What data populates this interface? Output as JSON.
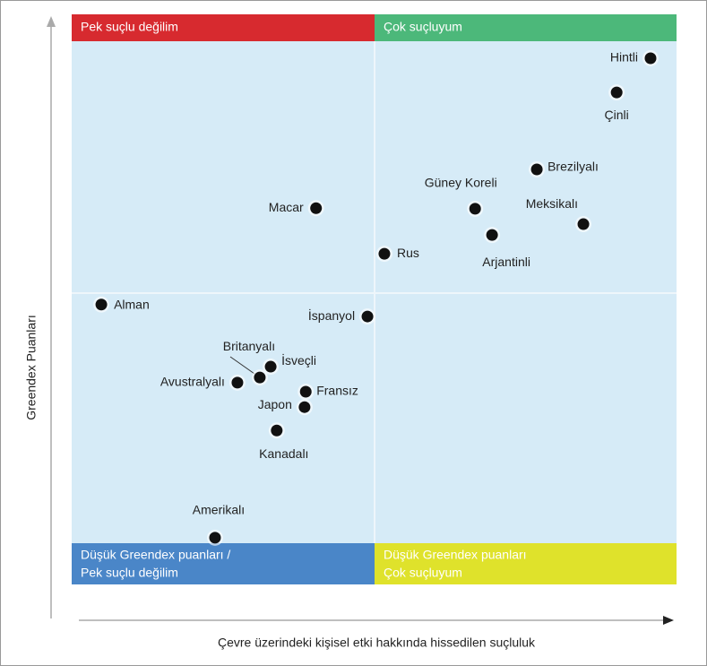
{
  "chart_data": {
    "type": "scatter",
    "x_label": "Çevre üzerindeki kişisel etki hakkında hissedilen suçluluk",
    "y_label": "Greendex Puanları",
    "quadrants": {
      "top_left": [
        "Pek suçlu değilim"
      ],
      "top_right": [
        "Çok suçluyum"
      ],
      "bottom_left": [
        "Düşük Greendex puanları /",
        "Pek suçlu değilim"
      ],
      "bottom_right": [
        "Düşük Greendex puanları",
        "Çok suçluyum"
      ]
    },
    "xlim": [
      0,
      100
    ],
    "ylim": [
      0,
      100
    ],
    "color": "#111111",
    "labels": [
      "Hintli",
      "Çinli",
      "Brezilyalı",
      "Güney Koreli",
      "Meksikalı",
      "Arjantinli",
      "Macar",
      "Rus",
      "Alman",
      "İspanyol",
      "İsveçli",
      "Britanyalı",
      "Avustralyalı",
      "Fransız",
      "Japon",
      "Kanadalı",
      "Amerikalı"
    ],
    "x": [
      95.7,
      90.1,
      76.9,
      66.7,
      84.6,
      69.5,
      40.4,
      51.7,
      4.9,
      48.9,
      32.9,
      31.1,
      27.4,
      38.7,
      38.5,
      33.9,
      23.7
    ],
    "y": [
      92.3,
      86.3,
      72.8,
      65.9,
      63.2,
      61.3,
      66.0,
      58.0,
      49.1,
      47.0,
      38.2,
      36.3,
      35.4,
      33.8,
      31.1,
      27.0,
      8.2
    ]
  }
}
